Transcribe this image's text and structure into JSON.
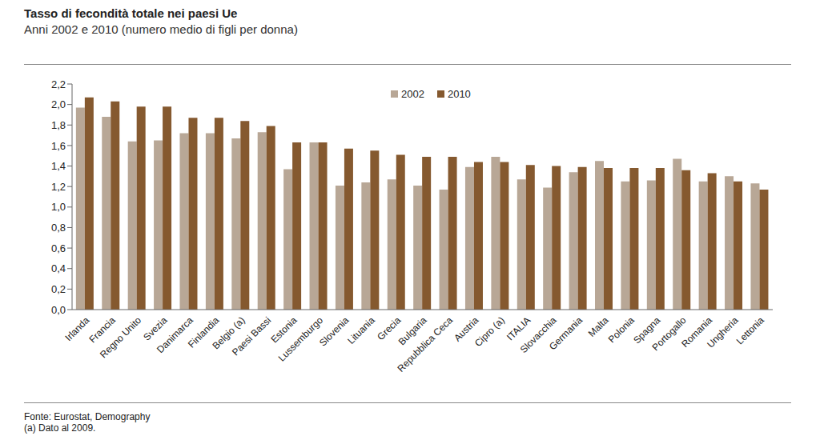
{
  "chart_data": {
    "type": "bar",
    "title": "Tasso di fecondità totale nei paesi Ue",
    "subtitle": "Anni 2002 e 2010 (numero medio di figli per donna)",
    "categories": [
      "Irlanda",
      "Francia",
      "Regno Unito",
      "Svezia",
      "Danimarca",
      "Finlandia",
      "Belgio (a)",
      "Paesi Bassi",
      "Estonia",
      "Lussemburgo",
      "Slovenia",
      "Lituania",
      "Grecia",
      "Bulgaria",
      "Repubblica Ceca",
      "Austria",
      "Cipro (a)",
      "ITALIA",
      "Slovacchia",
      "Germania",
      "Malta",
      "Polonia",
      "Spagna",
      "Portogallo",
      "Romania",
      "Ungheria",
      "Lettonia"
    ],
    "series": [
      {
        "name": "2002",
        "color": "#b8a796",
        "values": [
          1.97,
          1.88,
          1.64,
          1.65,
          1.72,
          1.72,
          1.67,
          1.73,
          1.37,
          1.63,
          1.21,
          1.24,
          1.27,
          1.21,
          1.17,
          1.39,
          1.49,
          1.27,
          1.19,
          1.34,
          1.45,
          1.25,
          1.26,
          1.47,
          1.25,
          1.3,
          1.23
        ]
      },
      {
        "name": "2010",
        "color": "#85592f",
        "values": [
          2.07,
          2.03,
          1.98,
          1.98,
          1.87,
          1.87,
          1.84,
          1.79,
          1.63,
          1.63,
          1.57,
          1.55,
          1.51,
          1.49,
          1.49,
          1.44,
          1.44,
          1.41,
          1.4,
          1.39,
          1.38,
          1.38,
          1.38,
          1.36,
          1.33,
          1.25,
          1.17
        ]
      }
    ],
    "ylim": [
      0,
      2.2
    ],
    "yticks": [
      {
        "value": 0,
        "label": "0,0"
      },
      {
        "value": 0.2,
        "label": "0,2"
      },
      {
        "value": 0.4,
        "label": "0,4"
      },
      {
        "value": 0.6,
        "label": "0,6"
      },
      {
        "value": 0.8,
        "label": "0,8"
      },
      {
        "value": 1,
        "label": "1,0"
      },
      {
        "value": 1.2,
        "label": "1,2"
      },
      {
        "value": 1.4,
        "label": "1,4"
      },
      {
        "value": 1.6,
        "label": "1,6"
      },
      {
        "value": 1.8,
        "label": "1,8"
      },
      {
        "value": 2,
        "label": "2,0"
      },
      {
        "value": 2.2,
        "label": "2,2"
      }
    ],
    "grid": false,
    "legend": "top",
    "annotations": [
      "Fonte: Eurostat, Demography",
      "(a) Dato al 2009."
    ]
  }
}
